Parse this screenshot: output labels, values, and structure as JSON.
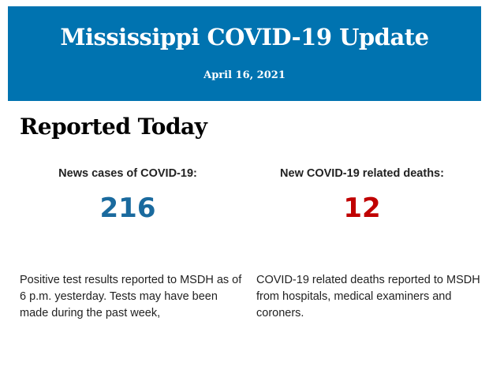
{
  "header": {
    "title": "Mississippi COVID-19 Update",
    "date": "April 16, 2021"
  },
  "section": {
    "heading": "Reported Today"
  },
  "stats": [
    {
      "label": "News cases of COVID-19:",
      "value": "216",
      "color": "#1a6a9e",
      "description": "Positive test results reported to MSDH as of 6 p.m. yesterday. Tests may have been made during the past week,"
    },
    {
      "label": "New COVID-19 related deaths:",
      "value": "12",
      "color": "#c00000",
      "description": "COVID-19 related deaths reported to MSDH from hospitals, medical examiners and coroners."
    }
  ],
  "colors": {
    "banner": "#0073b0"
  }
}
